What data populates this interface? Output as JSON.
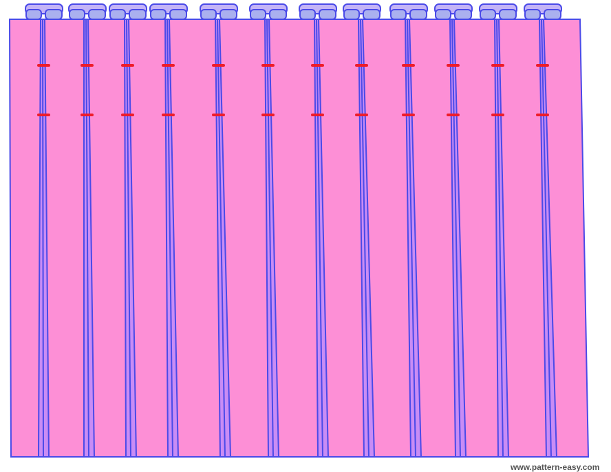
{
  "watermark": "www.pattern-easy.com"
}
